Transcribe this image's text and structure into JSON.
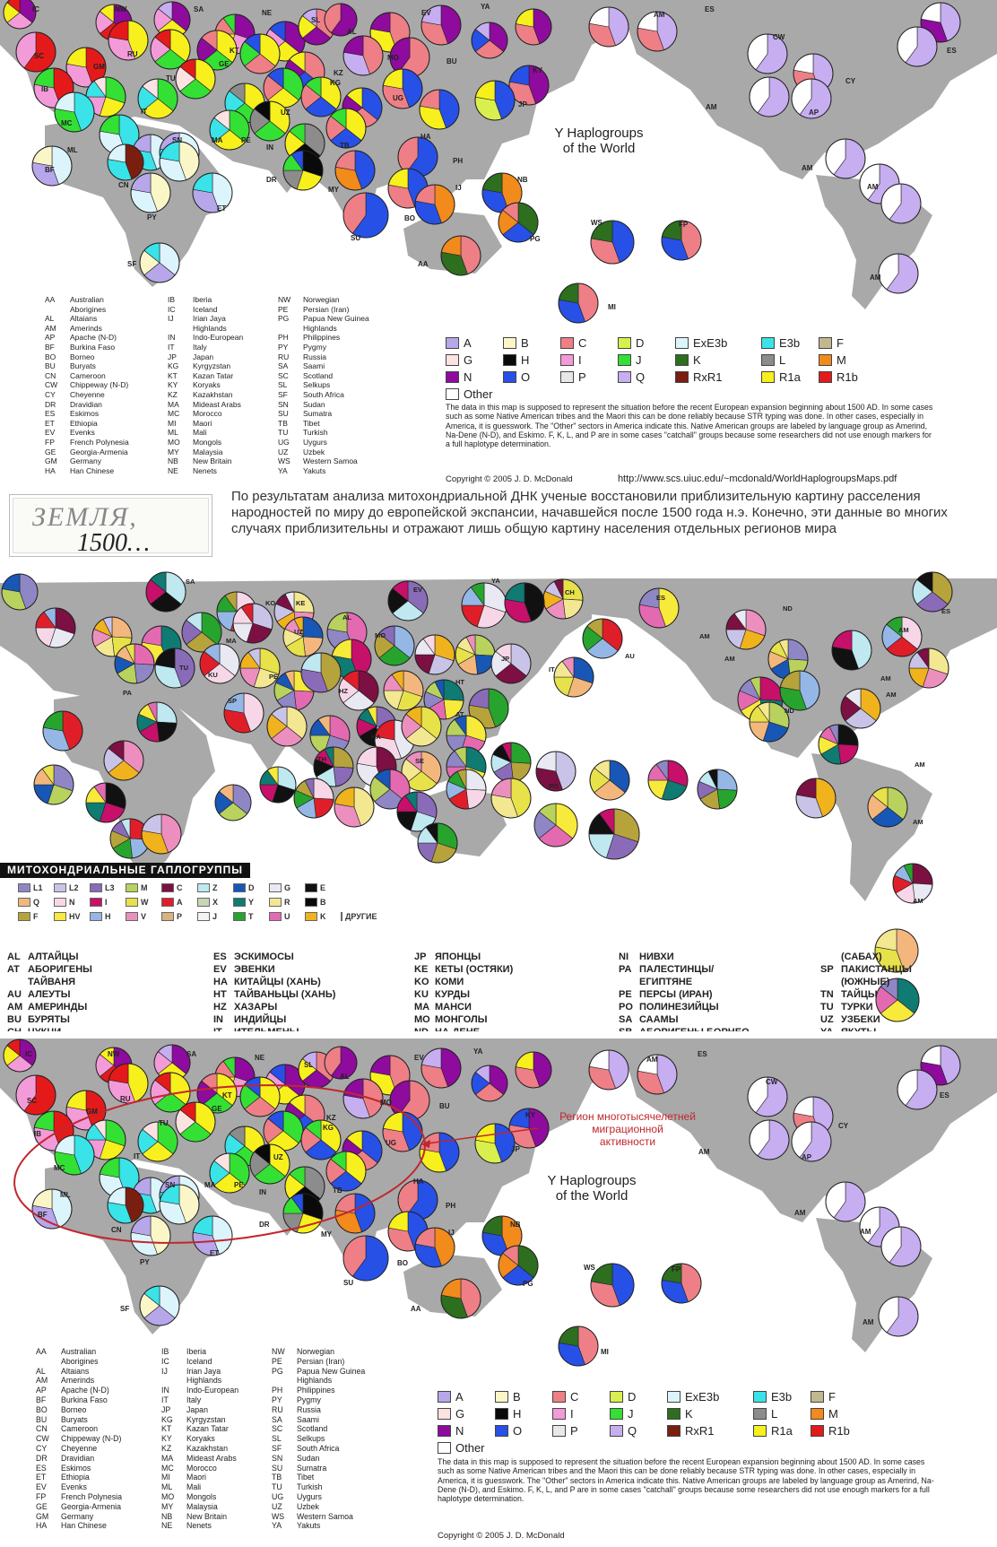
{
  "colors": {
    "land": "#a9a9a9",
    "A": "#b7a7ea",
    "B": "#fbf6c8",
    "C": "#ee7f86",
    "D": "#d9ef4e",
    "ExE3b": "#dcf4fb",
    "E3b": "#39e3e8",
    "F": "#c2b88f",
    "G": "#fde2e2",
    "H": "#0a0a0a",
    "I": "#f39bd8",
    "J": "#34e034",
    "K": "#2d6e1f",
    "L": "#8c8c8c",
    "M": "#f28a1c",
    "N": "#8e0b9d",
    "O": "#2750e6",
    "P": "#e8e8e8",
    "Q": "#c6aef0",
    "RxR1": "#7a1e10",
    "R1a": "#f7f01c",
    "R1b": "#e41a1a",
    "Other": "#ffffff"
  },
  "top_map": {
    "title_line1": "Y Haplogroups",
    "title_line2": "of the World",
    "region_labels": [
      "IC",
      "NW",
      "SA",
      "NE",
      "SL",
      "EV",
      "YA",
      "AM",
      "ES",
      "ES",
      "SC",
      "RU",
      "GM",
      "KT",
      "AL",
      "MO",
      "BU",
      "CW",
      "CY",
      "KY",
      "IB",
      "TU",
      "GE",
      "KZ",
      "KG",
      "UG",
      "JP",
      "AM",
      "AP",
      "MC",
      "IT",
      "UZ",
      "MA",
      "PE",
      "IN",
      "TB",
      "HA",
      "ML",
      "SN",
      "BF",
      "CN",
      "DR",
      "MY",
      "PH",
      "IJ",
      "NB",
      "AM",
      "ET",
      "PY",
      "BO",
      "SU",
      "WS",
      "FP",
      "AM",
      "SF",
      "AA",
      "PG",
      "AM",
      "MI"
    ],
    "abbreviations": [
      [
        [
          "AA",
          "Australian"
        ],
        [
          "",
          "Aborigines"
        ],
        [
          "AL",
          "Altaians"
        ],
        [
          "AM",
          "Amerinds"
        ],
        [
          "AP",
          "Apache (N-D)"
        ],
        [
          "BF",
          "Burkina Faso"
        ],
        [
          "BO",
          "Borneo"
        ],
        [
          "BU",
          "Buryats"
        ],
        [
          "CN",
          "Cameroon"
        ],
        [
          "CW",
          "Chippeway (N-D)"
        ],
        [
          "CY",
          "Cheyenne"
        ],
        [
          "DR",
          "Dravidian"
        ],
        [
          "ES",
          "Eskimos"
        ],
        [
          "ET",
          "Ethiopia"
        ],
        [
          "EV",
          "Evenks"
        ],
        [
          "FP",
          "French Polynesia"
        ],
        [
          "GE",
          "Georgia-Armenia"
        ],
        [
          "GM",
          "Germany"
        ],
        [
          "HA",
          "Han Chinese"
        ]
      ],
      [
        [
          "IB",
          "Iberia"
        ],
        [
          "IC",
          "Iceland"
        ],
        [
          "IJ",
          "Irian Jaya"
        ],
        [
          "",
          "Highlands"
        ],
        [
          "IN",
          "Indo-European"
        ],
        [
          "IT",
          "Italy"
        ],
        [
          "JP",
          "Japan"
        ],
        [
          "KG",
          "Kyrgyzstan"
        ],
        [
          "KT",
          "Kazan Tatar"
        ],
        [
          "KY",
          "Koryaks"
        ],
        [
          "KZ",
          "Kazakhstan"
        ],
        [
          "MA",
          "Mideast Arabs"
        ],
        [
          "MC",
          "Morocco"
        ],
        [
          "MI",
          "Maori"
        ],
        [
          "ML",
          "Mali"
        ],
        [
          "MO",
          "Mongols"
        ],
        [
          "MY",
          "Malaysia"
        ],
        [
          "NB",
          "New Britain"
        ],
        [
          "NE",
          "Nenets"
        ]
      ],
      [
        [
          "NW",
          "Norwegian"
        ],
        [
          "PE",
          "Persian (Iran)"
        ],
        [
          "PG",
          "Papua New Guinea"
        ],
        [
          "",
          "Highlands"
        ],
        [
          "PH",
          "Philippines"
        ],
        [
          "PY",
          "Pygmy"
        ],
        [
          "RU",
          "Russia"
        ],
        [
          "SA",
          "Saami"
        ],
        [
          "SC",
          "Scotland"
        ],
        [
          "SL",
          "Selkups"
        ],
        [
          "SF",
          "South Africa"
        ],
        [
          "SN",
          "Sudan"
        ],
        [
          "SU",
          "Sumatra"
        ],
        [
          "TB",
          "Tibet"
        ],
        [
          "TU",
          "Turkish"
        ],
        [
          "UG",
          "Uygurs"
        ],
        [
          "UZ",
          "Uzbek"
        ],
        [
          "WS",
          "Western Samoa"
        ],
        [
          "YA",
          "Yakuts"
        ]
      ]
    ],
    "legend": [
      [
        "A",
        "A"
      ],
      [
        "B",
        "B"
      ],
      [
        "C",
        "C"
      ],
      [
        "D",
        "D"
      ],
      [
        "ExE3b",
        "ExE3b"
      ],
      [
        "E3b",
        "E3b"
      ],
      [
        "F",
        "F"
      ],
      [
        "G",
        "G"
      ],
      [
        "H",
        "H"
      ],
      [
        "I",
        "I"
      ],
      [
        "J",
        "J"
      ],
      [
        "K",
        "K"
      ],
      [
        "L",
        "L"
      ],
      [
        "M",
        "M"
      ],
      [
        "N",
        "N"
      ],
      [
        "O",
        "O"
      ],
      [
        "P",
        "P"
      ],
      [
        "Q",
        "Q"
      ],
      [
        "RxR1",
        "RxR1"
      ],
      [
        "R1a",
        "R1a"
      ],
      [
        "R1b",
        "R1b"
      ],
      [
        "Other",
        "Other"
      ]
    ],
    "note": "The data in this map is supposed to represent the situation before the recent European expansion beginning about 1500 AD. In some cases such as some Native American tribes and the Maori this can be done reliably because STR typing was done. In other cases, especially in America, it is guesswork. The \"Other\" sectors in America indicate this. Native American groups are labeled by language group as Amerind, Na-Dene (N-D), and Eskimo.  F, K, L, and P are in some cases \"catchall\" groups because some researchers did not use enough markers for a full haplotype determination.",
    "copyright": "Copyright © 2005 J. D. McDonald",
    "url": "http://www.scs.uiuc.edu/~mcdonald/WorldHaplogroupsMaps.pdf"
  },
  "zemlya": {
    "word": "ЗЕМЛЯ,",
    "year": "1500…",
    "text": "По результатам анализа митохондриальной ДНК ученые восстановили приблизительную картину расселения народностей по миру до европейской экспансии, начавшейся после 1500 года н.э. Конечно, эти данные во многих случаях приблизительны и отражают лишь общую картину населения отдельных регионов мира"
  },
  "mito_map": {
    "region_labels": [
      "SA",
      "KO",
      "KE",
      "AL",
      "EV",
      "YA",
      "CH",
      "ES",
      "ND",
      "ES",
      "MA",
      "UZ",
      "MO",
      "AM",
      "AU",
      "AM",
      "AM",
      "IT",
      "TU",
      "KU",
      "PE",
      "HZ",
      "HT",
      "JP",
      "AM",
      "PA",
      "AM",
      "SP",
      "AT",
      "HA",
      "ND",
      "SE",
      "TH",
      "AM",
      "PO",
      "AM",
      "AM"
    ],
    "legend_title": "МИТОХОНДРИАЛЬНЫЕ ГАПЛОГРУППЫ",
    "legend": [
      [
        "L1",
        "#8f86c6"
      ],
      [
        "L2",
        "#c9c4e7"
      ],
      [
        "L3",
        "#8a6bb8"
      ],
      [
        "M",
        "#b8d25d"
      ],
      [
        "C",
        "#7c1043"
      ],
      [
        "Z",
        "#bfe8f0"
      ],
      [
        "D",
        "#1857b6"
      ],
      [
        "G",
        "#e9e9f3"
      ],
      [
        "E",
        "#111111"
      ],
      [
        "",
        ""
      ],
      [
        "Q",
        "#f3b77e"
      ],
      [
        "N",
        "#f7d7e7"
      ],
      [
        "I",
        "#c7106a"
      ],
      [
        "W",
        "#e7e14a"
      ],
      [
        "A",
        "#e01e2a"
      ],
      [
        "X",
        "#c8d6b4"
      ],
      [
        "Y",
        "#0f7b72"
      ],
      [
        "R",
        "#f3e891"
      ],
      [
        "B",
        "#0a0a0a"
      ],
      [
        "",
        ""
      ],
      [
        "F",
        "#b6a33c"
      ],
      [
        "HV",
        "#f7ea3b"
      ],
      [
        "H",
        "#95b7e5"
      ],
      [
        "V",
        "#ec8fbf"
      ],
      [
        "P",
        "#d9b27e"
      ],
      [
        "J",
        "#f3f3f3"
      ],
      [
        "T",
        "#27a42e"
      ],
      [
        "U",
        "#e36ab1"
      ],
      [
        "K",
        "#f0b31d"
      ],
      [
        "ДРУГИЕ",
        "#ffffff"
      ]
    ],
    "abbreviations": [
      [
        [
          "AL",
          "АЛТАЙЦЫ"
        ],
        [
          "AT",
          "АБОРИГЕНЫ"
        ],
        [
          "",
          "ТАЙВАНЯ"
        ],
        [
          "AU",
          "АЛЕУТЫ"
        ],
        [
          "AM",
          "АМЕРИНДЫ"
        ],
        [
          "BU",
          "БУРЯТЫ"
        ],
        [
          "CH",
          "ЧУКЧИ"
        ]
      ],
      [
        [
          "ES",
          "ЭСКИМОСЫ"
        ],
        [
          "EV",
          "ЭВЕНКИ"
        ],
        [
          "HA",
          "КИТАЙЦЫ (ХАНЬ)"
        ],
        [
          "HT",
          "ТАЙВАНЬЦЫ (ХАНЬ)"
        ],
        [
          "HZ",
          "ХАЗАРЫ"
        ],
        [
          "IN",
          "ИНДИЙЦЫ"
        ],
        [
          "IT",
          "ИТЕЛЬМЕНЫ"
        ]
      ],
      [
        [
          "JP",
          "ЯПОНЦЫ"
        ],
        [
          "KE",
          "КЕТЫ (ОСТЯКИ)"
        ],
        [
          "KO",
          "КОМИ"
        ],
        [
          "KU",
          "КУРДЫ"
        ],
        [
          "MA",
          "МАНСИ"
        ],
        [
          "MO",
          "МОНГОЛЫ"
        ],
        [
          "ND",
          "НА-ДЕНЕ"
        ]
      ],
      [
        [
          "NI",
          "НИВХИ"
        ],
        [
          "PA",
          "ПАЛЕСТИНЦЫ/"
        ],
        [
          "",
          "ЕГИПТЯНЕ"
        ],
        [
          "PE",
          "ПЕРСЫ (ИРАН)"
        ],
        [
          "PO",
          "ПОЛИНЕЗИЙЦЫ"
        ],
        [
          "SA",
          "СААМЫ"
        ],
        [
          "SB",
          "АБОРИГЕНЫ БОРНЕО"
        ]
      ],
      [
        [
          "",
          "(САБАХ)"
        ],
        [
          "SP",
          "ПАКИСТАНЦЫ"
        ],
        [
          "",
          "(ЮЖНЫЕ)"
        ],
        [
          "TN",
          "ТАЙЦЫ"
        ],
        [
          "TU",
          "ТУРКИ"
        ],
        [
          "UZ",
          "УЗБЕКИ"
        ],
        [
          "YA",
          "ЯКУТЫ"
        ]
      ]
    ]
  },
  "bottom_map": {
    "title_line1": "Y Haplogroups",
    "title_line2": "of the World",
    "region_note_line1": "Регион многотысячелетней",
    "region_note_line2": "миграционной",
    "region_note_line3": "активности",
    "region_labels": [
      "IC",
      "NW",
      "SA",
      "NE",
      "SL",
      "EV",
      "YA",
      "AM",
      "ES",
      "ES",
      "SC",
      "RU",
      "GM",
      "KT",
      "AL",
      "MO",
      "BU",
      "CW",
      "CY",
      "KY",
      "IB",
      "TU",
      "GE",
      "KZ",
      "KG",
      "UG",
      "JP",
      "AM",
      "AP",
      "MC",
      "IT",
      "UZ",
      "MA",
      "PE",
      "IN",
      "TB",
      "HA",
      "ML",
      "SN",
      "BF",
      "CN",
      "DR",
      "MY",
      "PH",
      "IJ",
      "NB",
      "AM",
      "ET",
      "PY",
      "BO",
      "SU",
      "WS",
      "FP",
      "AM",
      "SF",
      "AA",
      "PG",
      "AM",
      "MI"
    ],
    "copyright": "Copyright © 2005 J. D. McDonald"
  }
}
